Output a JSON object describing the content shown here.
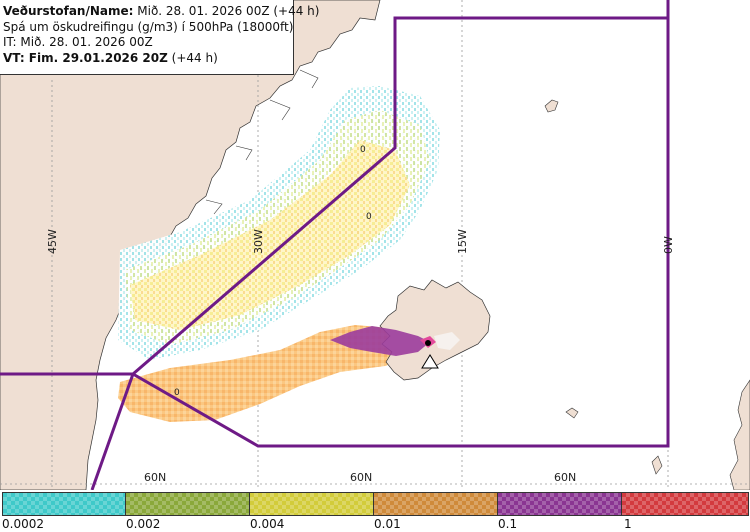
{
  "info": {
    "line1_bold": "Veðurstofan/Name:",
    "line1_rest": " Mið. 28. 01. 2026 00Z (+44 h)",
    "line2": "Spá um öskudreifingu (g/m3) í 500hPa (18000ft)",
    "line3": "IT: Mið. 28. 01. 2026 00Z",
    "line4_bold": "VT: Fim. 29.01.2026 20Z",
    "line4_rest": " (+44 h)"
  },
  "map": {
    "meridian_labels": [
      "45W",
      "30W",
      "15W",
      "0W"
    ],
    "parallel_labels": [
      "60N",
      "60N",
      "60N"
    ],
    "contour_labels": [
      "0",
      "0",
      "0"
    ],
    "colors": {
      "land": "#efdfd3",
      "sea": "#ffffff",
      "boundary": "#6e1a86",
      "grid": "#9a9a9a"
    }
  },
  "legend": {
    "ticks": [
      "0.0002",
      "0.002",
      "0.004",
      "0.01",
      "0.1",
      "1"
    ],
    "colors": [
      "#3fc9c9",
      "#8aa83a",
      "#d2cc3a",
      "#cf8a3a",
      "#8a3592",
      "#d33a3e"
    ]
  }
}
